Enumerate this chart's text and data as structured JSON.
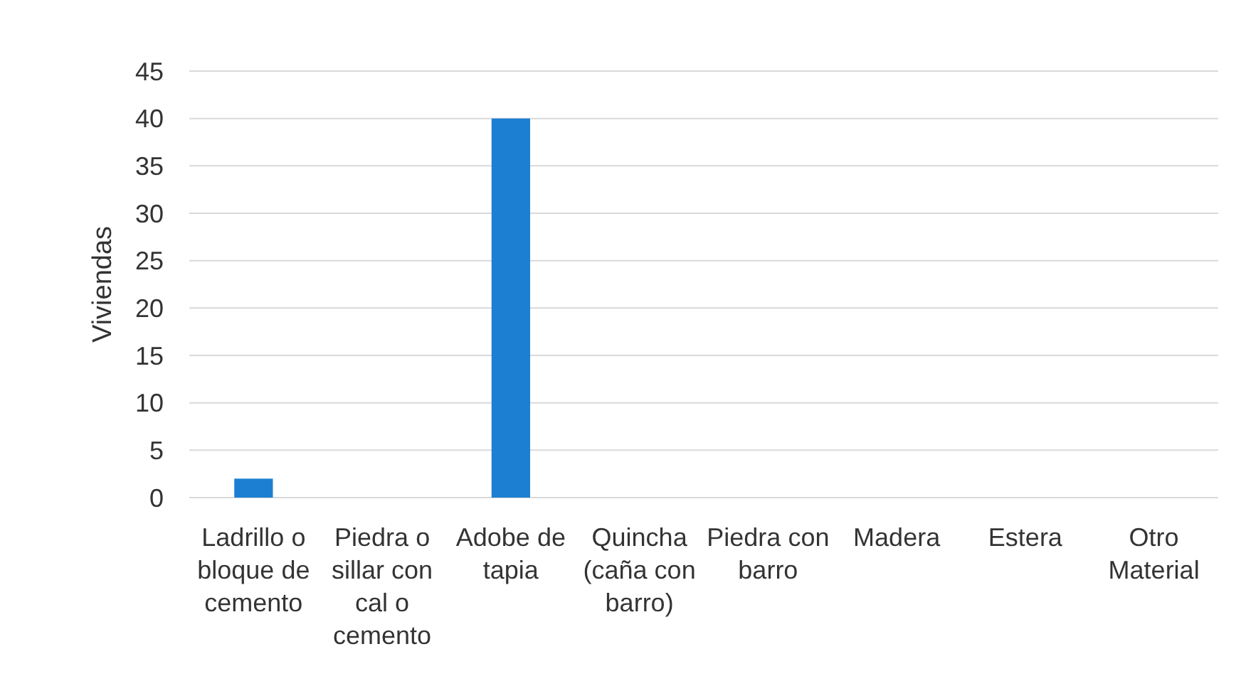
{
  "chart_data": {
    "type": "bar",
    "ylabel": "Viviendas",
    "categories": [
      "Ladrillo o bloque de cemento",
      "Piedra o sillar con cal o cemento",
      "Adobe de tapia",
      "Quincha (caña con barro)",
      "Piedra con barro",
      "Madera",
      "Estera",
      "Otro Material"
    ],
    "values": [
      2,
      0,
      40,
      0,
      0,
      0,
      0,
      0
    ],
    "color": "#1c7fd1",
    "ylim": [
      0,
      45
    ],
    "yticks": [
      0,
      5,
      10,
      15,
      20,
      25,
      30,
      35,
      40,
      45
    ],
    "grid": "y"
  }
}
